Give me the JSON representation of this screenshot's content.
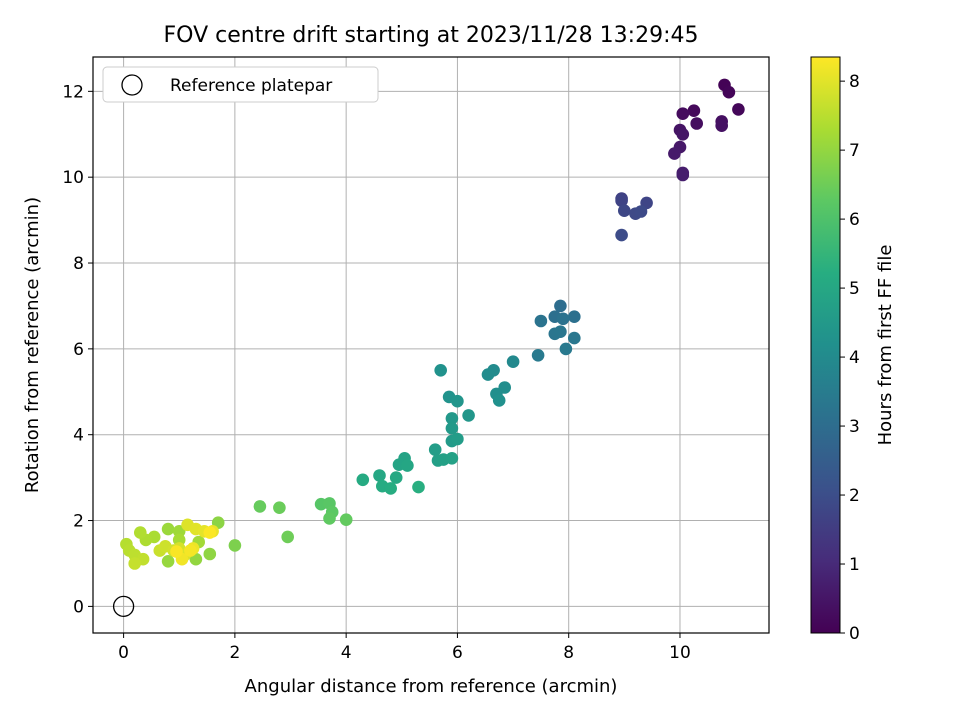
{
  "chart_data": {
    "type": "scatter",
    "title": "FOV centre drift starting at 2023/11/28 13:29:45",
    "xlabel": "Angular distance from reference (arcmin)",
    "ylabel": "Rotation from reference (arcmin)",
    "xlim": [
      -0.55,
      11.6
    ],
    "ylim": [
      -0.62,
      12.8
    ],
    "xticks": [
      "0",
      "2",
      "4",
      "6",
      "8",
      "10"
    ],
    "xtick_values": [
      0,
      2,
      4,
      6,
      8,
      10
    ],
    "yticks": [
      "0",
      "2",
      "4",
      "6",
      "8",
      "10",
      "12"
    ],
    "ytick_values": [
      0,
      2,
      4,
      6,
      8,
      10,
      12
    ],
    "grid": true,
    "legend": {
      "placement": "top-left",
      "label": "Reference platepar"
    },
    "reference_point": {
      "x": 0,
      "y": 0
    },
    "colorbar": {
      "label": "Hours from first FF file",
      "colormap": "viridis",
      "range": [
        0,
        8.35
      ],
      "ticks": [
        "0",
        "1",
        "2",
        "3",
        "4",
        "5",
        "6",
        "7",
        "8"
      ],
      "tick_values": [
        0,
        1,
        2,
        3,
        4,
        5,
        6,
        7,
        8
      ],
      "stops": [
        "#440154",
        "#472c7a",
        "#3b518b",
        "#2c718e",
        "#21908d",
        "#27ad81",
        "#5cc863",
        "#aadc32",
        "#fde725"
      ]
    },
    "series": [
      {
        "points": [
          [
            10.8,
            12.15,
            0.05
          ],
          [
            10.88,
            11.98,
            0.1
          ],
          [
            11.05,
            11.58,
            0.15
          ],
          [
            10.25,
            11.55,
            0.2
          ],
          [
            10.05,
            11.48,
            0.25
          ],
          [
            10.3,
            11.25,
            0.3
          ],
          [
            10.75,
            11.3,
            0.35
          ],
          [
            10.75,
            11.2,
            0.4
          ],
          [
            10.0,
            11.1,
            0.45
          ],
          [
            10.05,
            11.0,
            0.5
          ],
          [
            10.0,
            10.7,
            0.55
          ],
          [
            9.9,
            10.55,
            0.6
          ],
          [
            10.05,
            10.1,
            0.65
          ],
          [
            10.05,
            10.05,
            0.7
          ],
          [
            8.95,
            9.5,
            1.65
          ],
          [
            8.95,
            9.45,
            1.7
          ],
          [
            9.4,
            9.4,
            1.75
          ],
          [
            9.0,
            9.22,
            1.8
          ],
          [
            9.2,
            9.15,
            1.85
          ],
          [
            9.3,
            9.2,
            1.9
          ],
          [
            8.95,
            8.65,
            1.95
          ],
          [
            7.85,
            7.0,
            3.0
          ],
          [
            7.75,
            6.75,
            3.05
          ],
          [
            8.1,
            6.75,
            3.1
          ],
          [
            7.9,
            6.7,
            3.15
          ],
          [
            7.5,
            6.65,
            3.2
          ],
          [
            7.75,
            6.35,
            3.25
          ],
          [
            7.85,
            6.4,
            3.3
          ],
          [
            8.1,
            6.25,
            3.35
          ],
          [
            7.95,
            6.0,
            3.4
          ],
          [
            7.45,
            5.85,
            3.45
          ],
          [
            7.0,
            5.7,
            3.95
          ],
          [
            6.65,
            5.5,
            4.0
          ],
          [
            6.55,
            5.4,
            4.05
          ],
          [
            6.85,
            5.1,
            4.1
          ],
          [
            6.7,
            4.95,
            4.15
          ],
          [
            6.75,
            4.8,
            4.2
          ],
          [
            5.7,
            5.5,
            4.25
          ],
          [
            5.85,
            4.88,
            4.3
          ],
          [
            6.0,
            4.78,
            4.35
          ],
          [
            6.2,
            4.45,
            4.4
          ],
          [
            5.9,
            4.38,
            4.45
          ],
          [
            5.9,
            4.15,
            4.5
          ],
          [
            5.9,
            3.85,
            4.55
          ],
          [
            6.0,
            3.9,
            4.6
          ],
          [
            5.6,
            3.65,
            4.65
          ],
          [
            5.65,
            3.4,
            4.7
          ],
          [
            5.75,
            3.42,
            4.75
          ],
          [
            5.9,
            3.45,
            4.8
          ],
          [
            5.05,
            3.45,
            4.85
          ],
          [
            4.95,
            3.3,
            4.9
          ],
          [
            5.1,
            3.28,
            4.95
          ],
          [
            4.6,
            3.05,
            5.0
          ],
          [
            4.9,
            3.0,
            5.05
          ],
          [
            4.3,
            2.95,
            5.1
          ],
          [
            4.65,
            2.8,
            5.15
          ],
          [
            4.8,
            2.75,
            5.2
          ],
          [
            5.3,
            2.78,
            5.25
          ],
          [
            3.55,
            2.38,
            6.15
          ],
          [
            3.7,
            2.4,
            6.2
          ],
          [
            3.75,
            2.2,
            6.25
          ],
          [
            3.7,
            2.05,
            6.3
          ],
          [
            4.0,
            2.02,
            6.35
          ],
          [
            2.45,
            2.33,
            6.4
          ],
          [
            2.8,
            2.3,
            6.45
          ],
          [
            2.95,
            1.62,
            6.5
          ],
          [
            2.0,
            1.42,
            6.7
          ],
          [
            1.7,
            1.95,
            6.9
          ],
          [
            1.55,
            1.22,
            6.95
          ],
          [
            1.3,
            1.1,
            7.0
          ],
          [
            0.8,
            1.05,
            7.05
          ],
          [
            0.8,
            1.8,
            7.1
          ],
          [
            1.0,
            1.75,
            7.15
          ],
          [
            1.35,
            1.5,
            7.2
          ],
          [
            1.0,
            1.55,
            7.25
          ],
          [
            0.55,
            1.62,
            7.3
          ],
          [
            0.4,
            1.55,
            7.35
          ],
          [
            0.3,
            1.72,
            7.4
          ],
          [
            0.05,
            1.45,
            7.45
          ],
          [
            0.1,
            1.3,
            7.5
          ],
          [
            0.2,
            1.2,
            7.55
          ],
          [
            0.35,
            1.1,
            7.6
          ],
          [
            0.2,
            1.0,
            7.65
          ],
          [
            0.65,
            1.3,
            7.7
          ],
          [
            0.75,
            1.4,
            7.75
          ],
          [
            0.9,
            1.3,
            7.8
          ],
          [
            1.0,
            1.35,
            7.85
          ],
          [
            1.1,
            1.2,
            7.9
          ],
          [
            1.15,
            1.9,
            7.95
          ],
          [
            1.3,
            1.8,
            8.0
          ],
          [
            1.45,
            1.75,
            8.05
          ],
          [
            1.6,
            1.75,
            8.1
          ],
          [
            1.25,
            1.35,
            8.15
          ],
          [
            1.05,
            1.1,
            8.2
          ],
          [
            1.2,
            1.3,
            8.25
          ],
          [
            0.95,
            1.28,
            8.3
          ],
          [
            1.55,
            1.72,
            8.32
          ]
        ]
      }
    ]
  }
}
